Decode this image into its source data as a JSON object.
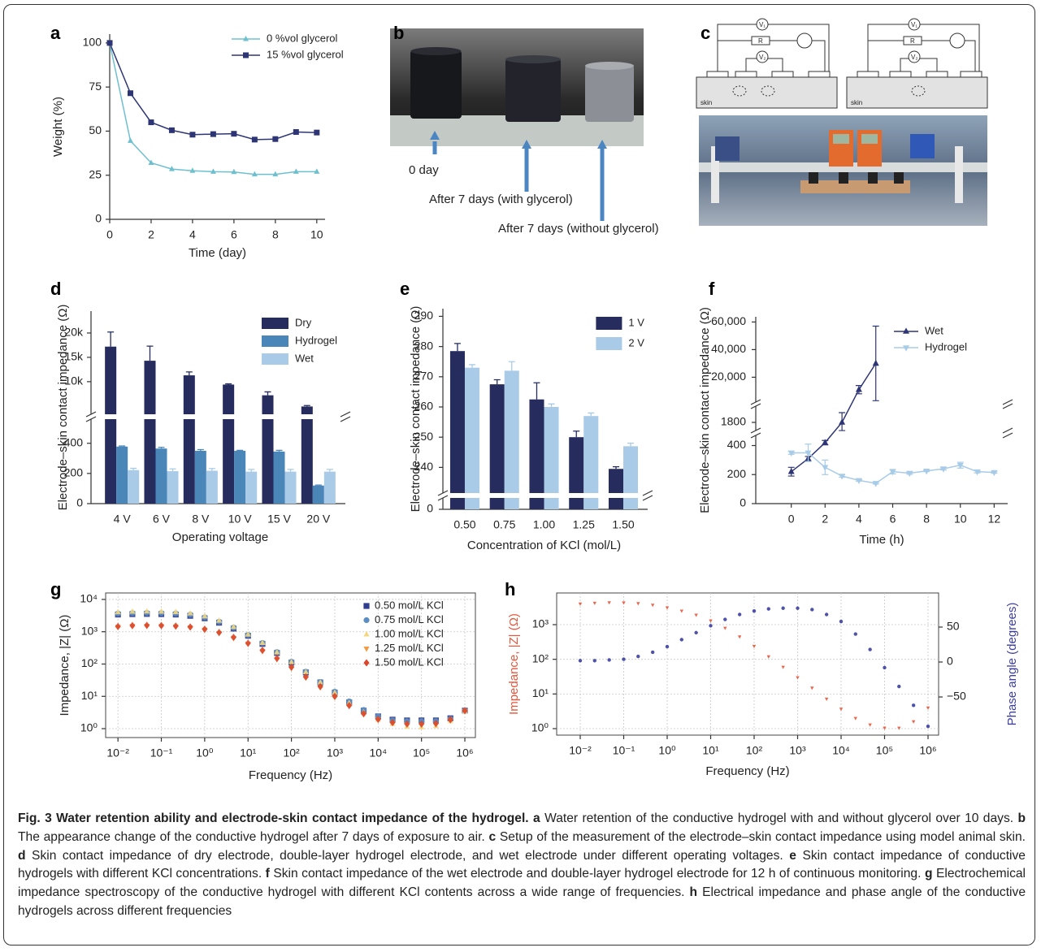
{
  "chart_data": [
    {
      "type": "line",
      "panel": "a",
      "x": [
        0,
        1,
        2,
        3,
        4,
        5,
        6,
        7,
        8,
        9,
        10
      ],
      "series": [
        {
          "name": "0 %vol glycerol",
          "color": "#6ec0cf",
          "marker": "triangle",
          "values": [
            100,
            44.5,
            32,
            28.5,
            27.5,
            27,
            26.8,
            25.5,
            25.5,
            27,
            27
          ]
        },
        {
          "name": "15 %vol glycerol",
          "color": "#2e3575",
          "marker": "square",
          "values": [
            100,
            71.5,
            55,
            50.5,
            48,
            48.3,
            48.5,
            45.2,
            45.5,
            49.5,
            49.2
          ]
        }
      ],
      "xlim": [
        0,
        10.4
      ],
      "xticks": [
        0,
        2,
        4,
        6,
        8,
        10
      ],
      "ylim": [
        0,
        105
      ],
      "yticks": [
        0,
        25,
        50,
        75,
        100
      ],
      "xlabel": "Time (day)",
      "ylabel": "Weight (%)",
      "legend": "upper right"
    },
    {
      "type": "bar",
      "panel": "d",
      "categories": [
        "4 V",
        "6 V",
        "8 V",
        "10 V",
        "15 V",
        "20 V"
      ],
      "series": [
        {
          "name": "Dry",
          "color": "#262c5e",
          "values": [
            17200,
            14300,
            11300,
            9400,
            7200,
            4900
          ],
          "errors": [
            3000,
            3000,
            700,
            150,
            700,
            200
          ]
        },
        {
          "name": "Hydrogel",
          "color": "#4a86b8",
          "values": [
            378,
            365,
            350,
            350,
            345,
            120
          ],
          "errors": [
            4,
            8,
            8,
            3,
            8,
            3
          ]
        },
        {
          "name": "Wet",
          "color": "#a9cbe8",
          "values": [
            222,
            215,
            218,
            212,
            212,
            212
          ],
          "errors": [
            12,
            15,
            15,
            15,
            15,
            15
          ]
        }
      ],
      "ylim": [
        [
          0,
          560
        ],
        [
          3300,
          24500
        ]
      ],
      "yticks": [
        0,
        200,
        400,
        {
          "value": 10000,
          "label": "10k"
        },
        {
          "value": 15000,
          "label": "15k"
        },
        {
          "value": 20000,
          "label": "20k"
        }
      ],
      "xlabel": "Operating voltage",
      "ylabel": "Electrode–skin contact impedance (Ω)",
      "legend": "upper right"
    },
    {
      "type": "bar",
      "panel": "e",
      "categories": [
        "0.50",
        "0.75",
        "1.00",
        "1.25",
        "1.50"
      ],
      "series": [
        {
          "name": "1 V",
          "color": "#262c5e",
          "values": [
            278.5,
            267.5,
            262.5,
            250,
            239.5
          ],
          "errors": [
            2.5,
            1.5,
            5.5,
            2,
            0.7
          ]
        },
        {
          "name": "2 V",
          "color": "#a9cbe8",
          "values": [
            273,
            272,
            260,
            257,
            247
          ],
          "errors": [
            1,
            3,
            1,
            1,
            1
          ]
        }
      ],
      "ylim": [
        [
          0,
          4
        ],
        [
          231.5,
          292
        ]
      ],
      "yticks": [
        0,
        240,
        250,
        260,
        270,
        280,
        290
      ],
      "xlabel": "Concentration of KCl (mol/L)",
      "ylabel": "Electrode–skin contact impedance (Ω)",
      "legend": "upper right"
    },
    {
      "type": "line",
      "panel": "f",
      "series": [
        {
          "name": "Wet",
          "color": "#2e3575",
          "marker": "triangle",
          "x": [
            0,
            1,
            2,
            3,
            4,
            5
          ],
          "values": [
            220,
            310,
            420,
            1800,
            11000,
            30000
          ],
          "errors": [
            30,
            15,
            15,
            60,
            3000,
            27000
          ]
        },
        {
          "name": "Hydrogel",
          "color": "#a8cbe8",
          "marker": "triangle-down",
          "x": [
            0,
            1,
            2,
            3,
            4,
            5,
            6,
            7,
            8,
            9,
            10,
            11,
            12
          ],
          "values": [
            350,
            350,
            250,
            190,
            160,
            140,
            220,
            210,
            225,
            240,
            265,
            220,
            215
          ],
          "errors": [
            10,
            60,
            50,
            8,
            5,
            5,
            15,
            8,
            5,
            8,
            20,
            8,
            5
          ]
        }
      ],
      "xlim": [
        -2.1,
        12.8
      ],
      "xticks": [
        0,
        2,
        4,
        6,
        8,
        10,
        12
      ],
      "ylim": [
        [
          0,
          470
        ],
        [
          1750,
          1900
        ],
        [
          2000,
          62000
        ]
      ],
      "yticks": [
        0,
        200,
        400,
        1800,
        {
          "value": 20000,
          "label": "20,000"
        },
        {
          "value": 40000,
          "label": "40,000"
        },
        {
          "value": 60000,
          "label": "60,000"
        }
      ],
      "xlabel": "Time (h)",
      "ylabel": "Electrode–skin contact impedance (Ω)",
      "legend": "upper right"
    },
    {
      "type": "scatter",
      "panel": "g",
      "x": [
        0.01,
        0.0215,
        0.0464,
        0.1,
        0.215,
        0.464,
        1,
        2.15,
        4.64,
        10,
        21.5,
        46.4,
        100,
        215,
        464,
        1000,
        2150,
        4640,
        10000,
        21500,
        46400,
        100000,
        215000,
        464000,
        1000000
      ],
      "series": [
        {
          "name": "0.50 mol/L KCl",
          "color": "#2f3d8f",
          "marker": "square",
          "values": [
            3400,
            3500,
            3550,
            3500,
            3400,
            3100,
            2600,
            1900,
            1250,
            750,
            420,
            220,
            110,
            55,
            27,
            13,
            6.5,
            3.6,
            2.4,
            1.9,
            1.8,
            1.8,
            1.8,
            2.1,
            3.6
          ]
        },
        {
          "name": "0.75 mol/L KCl",
          "color": "#5b8fc4",
          "marker": "circle",
          "values": [
            3700,
            3800,
            3850,
            3800,
            3700,
            3400,
            2800,
            2050,
            1350,
            800,
            450,
            235,
            118,
            58,
            28,
            14,
            7,
            3.8,
            2.4,
            1.8,
            1.7,
            1.7,
            1.7,
            2,
            3.6
          ]
        },
        {
          "name": "1.00 mol/L KCl",
          "color": "#f3d77e",
          "marker": "triangle",
          "values": [
            4000,
            4200,
            4250,
            4200,
            4050,
            3700,
            3000,
            2200,
            1400,
            820,
            450,
            230,
            115,
            56,
            27,
            13,
            6.2,
            3.2,
            1.9,
            1.4,
            1.15,
            1.1,
            1.2,
            1.7,
            3.4
          ]
        },
        {
          "name": "1.25 mol/L KCl",
          "color": "#f29a46",
          "marker": "triangle-down",
          "values": [
            1400,
            1500,
            1520,
            1500,
            1450,
            1350,
            1150,
            900,
            640,
            420,
            250,
            140,
            75,
            38,
            19,
            9.5,
            5,
            2.8,
            1.9,
            1.5,
            1.35,
            1.3,
            1.35,
            1.8,
            3.5
          ]
        },
        {
          "name": "1.50 mol/L KCl",
          "color": "#d9472b",
          "marker": "diamond",
          "values": [
            1450,
            1550,
            1570,
            1550,
            1500,
            1400,
            1200,
            950,
            670,
            440,
            265,
            150,
            80,
            40,
            20,
            10,
            5.2,
            2.9,
            1.95,
            1.55,
            1.4,
            1.4,
            1.45,
            1.9,
            3.6
          ]
        }
      ],
      "xlog": true,
      "ylog": true,
      "xlim": [
        0.0052,
        1750000
      ],
      "ylim": [
        0.53,
        15850
      ],
      "xticks": [
        {
          "value": 0.01,
          "label": "10⁻²"
        },
        {
          "value": 0.1,
          "label": "10⁻¹"
        },
        {
          "value": 1,
          "label": "10⁰"
        },
        {
          "value": 10,
          "label": "10¹"
        },
        {
          "value": 100,
          "label": "10²"
        },
        {
          "value": 1000,
          "label": "10³"
        },
        {
          "value": 10000,
          "label": "10⁴"
        },
        {
          "value": 100000,
          "label": "10⁵"
        },
        {
          "value": 1000000,
          "label": "10⁶"
        }
      ],
      "yticks": [
        {
          "value": 1,
          "label": "10⁰"
        },
        {
          "value": 10,
          "label": "10¹"
        },
        {
          "value": 100,
          "label": "10²"
        },
        {
          "value": 1000,
          "label": "10³"
        },
        {
          "value": 10000,
          "label": "10⁴"
        }
      ],
      "grid": true,
      "xlabel": "Frequency (Hz)",
      "ylabel": "Impedance, |Z| (Ω)",
      "legend": "upper right"
    },
    {
      "type": "scatter",
      "panel": "h",
      "x": [
        0.01,
        0.0215,
        0.0464,
        0.1,
        0.215,
        0.464,
        1,
        2.15,
        4.64,
        10,
        21.5,
        46.4,
        100,
        215,
        464,
        1000,
        2150,
        4640,
        10000,
        21500,
        46400,
        100000,
        215000,
        464000,
        1000000
      ],
      "series": [
        {
          "color": "#e8553a",
          "marker": "triangle-down",
          "values": [
            4000,
            4200,
            4350,
            4300,
            4100,
            3700,
            3100,
            2500,
            1900,
            1300,
            800,
            450,
            240,
            120,
            60,
            30,
            15,
            7.2,
            3.7,
            2,
            1.3,
            1.05,
            1.05,
            1.6,
            4
          ]
        },
        {
          "color": "#3c3fa0",
          "marker": "circle",
          "axis": "y2",
          "values": [
            2,
            2,
            3,
            4,
            8,
            14,
            22,
            32,
            42,
            52,
            61,
            68,
            73,
            76,
            77,
            77,
            75,
            68,
            58,
            40,
            18,
            -8,
            -35,
            -62,
            -92
          ]
        }
      ],
      "xlog": true,
      "ylog": true,
      "xlim": [
        0.00287,
        1750000
      ],
      "ylim": [
        0.65,
        8200
      ],
      "xticks": [
        {
          "value": 0.01,
          "label": "10⁻²"
        },
        {
          "value": 0.1,
          "label": "10⁻¹"
        },
        {
          "value": 1,
          "label": "10⁰"
        },
        {
          "value": 10,
          "label": "10¹"
        },
        {
          "value": 100,
          "label": "10²"
        },
        {
          "value": 1000,
          "label": "10³"
        },
        {
          "value": 10000,
          "label": "10⁴"
        },
        {
          "value": 100000,
          "label": "10⁵"
        },
        {
          "value": 1000000,
          "label": "10⁶"
        }
      ],
      "yticks": [
        {
          "value": 1,
          "label": "10⁰"
        },
        {
          "value": 10,
          "label": "10¹"
        },
        {
          "value": 100,
          "label": "10²"
        },
        {
          "value": 1000,
          "label": "10³"
        }
      ],
      "y2lim": [
        -104.6,
        98.8
      ],
      "y2ticks": [
        {
          "value": -50,
          "label": "−50"
        },
        0,
        50
      ],
      "grid": true,
      "xlabel": "Frequency (Hz)",
      "ylabel": "Impedance, |Z| (Ω)",
      "y2label": "Phase angle (degrees)",
      "ylabel_color": "#e8553a",
      "y2label_color": "#3c3fa0"
    }
  ],
  "photo_b": {
    "panel": "b",
    "labels": [
      "0 day",
      "After 7 days (with glycerol)",
      "After 7 days (without glycerol)"
    ]
  },
  "photo_c": {
    "panel": "c",
    "circuits": [
      {
        "labels": [
          "V₁",
          "R",
          "V₂",
          "skin"
        ]
      },
      {
        "labels": [
          "V₁",
          "R",
          "V₂",
          "skin"
        ]
      }
    ]
  },
  "caption": {
    "title": "Fig. 3 Water retention ability and electrode-skin contact impedance of the hydrogel.",
    "items": [
      {
        "label": "a",
        "text": "Water retention of the conductive hydrogel with and without glycerol over 10 days."
      },
      {
        "label": "b",
        "text": "The appearance change of the conductive hydrogel after 7 days of exposure to air."
      },
      {
        "label": "c",
        "text": "Setup of the measurement of the electrode–skin contact impedance using model animal skin."
      },
      {
        "label": "d",
        "text": "Skin contact impedance of dry electrode, double-layer hydrogel electrode, and wet electrode under different operating voltages."
      },
      {
        "label": "e",
        "text": "Skin contact impedance of conductive hydrogels with different KCl concentrations."
      },
      {
        "label": "f",
        "text": "Skin contact impedance of the wet electrode and double-layer hydrogel electrode for 12 h of continuous monitoring."
      },
      {
        "label": "g",
        "text": "Electrochemical impedance spectroscopy of the conductive hydrogel with different KCl contents across a wide range of frequencies."
      },
      {
        "label": "h",
        "text": "Electrical impedance and phase angle of the conductive hydrogels across different frequencies"
      }
    ]
  }
}
